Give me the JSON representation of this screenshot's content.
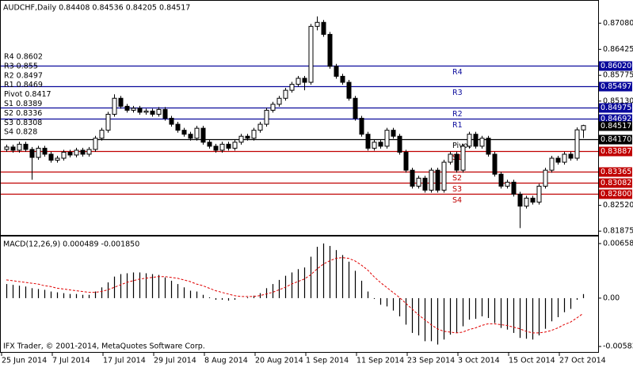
{
  "chart_data": [
    {
      "type": "candlestick",
      "title": "AUDCHF,Daily  0.84408 0.84536 0.84205 0.84517",
      "footer": "IFX Trader, © 2001-2014, MetaQuotes Software Corp.",
      "categories": [
        "25 Jun 2014",
        null,
        null,
        null,
        null,
        null,
        null,
        null,
        "7 Jul 2014",
        null,
        null,
        null,
        null,
        null,
        null,
        null,
        "17 Jul 2014",
        null,
        null,
        null,
        null,
        null,
        null,
        null,
        "29 Jul 2014",
        null,
        null,
        null,
        null,
        null,
        null,
        null,
        "8 Aug 2014",
        null,
        null,
        null,
        null,
        null,
        null,
        null,
        "20 Aug 2014",
        null,
        null,
        null,
        null,
        null,
        null,
        null,
        "1 Sep 2014",
        null,
        null,
        null,
        null,
        null,
        null,
        null,
        "11 Sep 2014",
        null,
        null,
        null,
        null,
        null,
        null,
        null,
        "23 Sep 2014",
        null,
        null,
        null,
        null,
        null,
        null,
        null,
        "3 Oct 2014",
        null,
        null,
        null,
        null,
        null,
        null,
        null,
        "15 Oct 2014",
        null,
        null,
        null,
        null,
        null,
        null,
        null,
        "27 Oct 2014",
        null,
        null,
        null
      ],
      "open": [
        0.8392,
        0.8398,
        0.839,
        0.8405,
        0.8392,
        0.8372,
        0.8395,
        0.838,
        0.8365,
        0.837,
        0.8385,
        0.8378,
        0.839,
        0.838,
        0.8392,
        0.842,
        0.844,
        0.848,
        0.852,
        0.85,
        0.849,
        0.8495,
        0.8485,
        0.8488,
        0.848,
        0.8492,
        0.847,
        0.8455,
        0.844,
        0.843,
        0.842,
        0.8445,
        0.841,
        0.84,
        0.839,
        0.8405,
        0.8395,
        0.841,
        0.8425,
        0.842,
        0.844,
        0.8455,
        0.849,
        0.8505,
        0.852,
        0.854,
        0.8555,
        0.857,
        0.856,
        0.87,
        0.871,
        0.868,
        0.86,
        0.8575,
        0.856,
        0.852,
        0.847,
        0.843,
        0.8395,
        0.841,
        0.84,
        0.844,
        0.8425,
        0.8385,
        0.834,
        0.83,
        0.832,
        0.829,
        0.834,
        0.829,
        0.836,
        0.838,
        0.834,
        0.84,
        0.843,
        0.84,
        0.842,
        0.838,
        0.833,
        0.83,
        0.831,
        0.828,
        0.825,
        0.827,
        0.826,
        0.83,
        0.834,
        0.837,
        0.836,
        0.838,
        0.837,
        0.84408
      ],
      "high": [
        0.8404,
        0.8404,
        0.8411,
        0.8411,
        0.8398,
        0.8401,
        0.8401,
        0.8386,
        0.8376,
        0.8391,
        0.8391,
        0.8396,
        0.8396,
        0.8398,
        0.8426,
        0.8446,
        0.8486,
        0.853,
        0.8526,
        0.8506,
        0.8501,
        0.8501,
        0.8494,
        0.8494,
        0.8498,
        0.8498,
        0.8476,
        0.8461,
        0.8446,
        0.8436,
        0.8451,
        0.8451,
        0.8416,
        0.8406,
        0.8411,
        0.8411,
        0.8416,
        0.8431,
        0.8431,
        0.8446,
        0.8461,
        0.8496,
        0.8511,
        0.8526,
        0.8546,
        0.8561,
        0.8576,
        0.8576,
        0.8706,
        0.8725,
        0.8716,
        0.8686,
        0.8606,
        0.8581,
        0.8566,
        0.8526,
        0.8476,
        0.8436,
        0.8416,
        0.8416,
        0.8446,
        0.8446,
        0.8431,
        0.8391,
        0.8346,
        0.8326,
        0.8326,
        0.8346,
        0.8346,
        0.8366,
        0.8386,
        0.8386,
        0.8406,
        0.8436,
        0.8436,
        0.8426,
        0.8426,
        0.8386,
        0.8336,
        0.8316,
        0.8316,
        0.8286,
        0.8276,
        0.8276,
        0.8306,
        0.8346,
        0.8376,
        0.8376,
        0.8386,
        0.8386,
        0.8447,
        0.84536
      ],
      "low": [
        0.8386,
        0.8384,
        0.8384,
        0.8386,
        0.8316,
        0.8366,
        0.8374,
        0.8359,
        0.8359,
        0.8364,
        0.8372,
        0.8372,
        0.8374,
        0.8374,
        0.8386,
        0.8414,
        0.8434,
        0.8474,
        0.8494,
        0.8484,
        0.8484,
        0.8479,
        0.8479,
        0.8474,
        0.8474,
        0.8464,
        0.8449,
        0.8434,
        0.8424,
        0.8414,
        0.8414,
        0.8404,
        0.8394,
        0.8384,
        0.8384,
        0.8389,
        0.8389,
        0.8404,
        0.8414,
        0.8414,
        0.8434,
        0.8449,
        0.8484,
        0.8499,
        0.8514,
        0.8534,
        0.8549,
        0.854,
        0.8554,
        0.869,
        0.8674,
        0.8594,
        0.8569,
        0.8554,
        0.8514,
        0.8464,
        0.8424,
        0.8389,
        0.8389,
        0.8394,
        0.8394,
        0.8419,
        0.8379,
        0.8334,
        0.8294,
        0.8294,
        0.8284,
        0.8284,
        0.8284,
        0.8284,
        0.8354,
        0.8334,
        0.8334,
        0.8394,
        0.8394,
        0.8394,
        0.8374,
        0.8324,
        0.8294,
        0.8294,
        0.8274,
        0.8195,
        0.8244,
        0.8254,
        0.8254,
        0.8294,
        0.8334,
        0.8354,
        0.8354,
        0.8364,
        0.8364,
        0.84205
      ],
      "close": [
        0.8398,
        0.839,
        0.8405,
        0.8392,
        0.8372,
        0.8395,
        0.838,
        0.8365,
        0.837,
        0.8385,
        0.8378,
        0.839,
        0.838,
        0.8392,
        0.842,
        0.844,
        0.848,
        0.852,
        0.85,
        0.849,
        0.8495,
        0.8485,
        0.8488,
        0.848,
        0.8492,
        0.847,
        0.8455,
        0.844,
        0.843,
        0.842,
        0.8445,
        0.841,
        0.84,
        0.839,
        0.8405,
        0.8395,
        0.841,
        0.8425,
        0.842,
        0.844,
        0.8455,
        0.849,
        0.8505,
        0.852,
        0.854,
        0.8555,
        0.857,
        0.856,
        0.87,
        0.871,
        0.868,
        0.86,
        0.8575,
        0.856,
        0.852,
        0.847,
        0.843,
        0.8395,
        0.841,
        0.84,
        0.844,
        0.8425,
        0.8385,
        0.834,
        0.83,
        0.832,
        0.829,
        0.834,
        0.829,
        0.836,
        0.838,
        0.834,
        0.84,
        0.843,
        0.84,
        0.842,
        0.838,
        0.833,
        0.83,
        0.831,
        0.828,
        0.825,
        0.827,
        0.826,
        0.83,
        0.834,
        0.837,
        0.836,
        0.838,
        0.837,
        0.8441,
        0.84517
      ],
      "ylim": [
        0.8178,
        0.8764
      ],
      "yticks": [
        {
          "value": 0.8708,
          "label": "0.87080"
        },
        0.86425,
        0.85775,
        {
          "value": 0.8513,
          "label": "0.85130"
        },
        {
          "value": 0.8252,
          "label": "0.82520"
        },
        0.81875
      ],
      "levels": [
        {
          "name": "R4",
          "legend": "R4 0.8602",
          "value": 0.8602,
          "price_label": "0.86020",
          "color": "#0a0a9c"
        },
        {
          "name": "R3",
          "legend": "R3 0.855",
          "value": 0.85497,
          "price_label": "0.85497",
          "color": "#0a0a9c"
        },
        {
          "name": "R2",
          "legend": "R2 0.8497",
          "value": 0.84975,
          "price_label": "0.84975",
          "color": "#0a0a9c"
        },
        {
          "name": "R1",
          "legend": "R1 0.8469",
          "value": 0.84692,
          "price_label": "0.84692",
          "color": "#0a0a9c"
        },
        {
          "name": "Pivot",
          "legend": "Pivot 0.8417",
          "value": 0.8417,
          "price_label": "0.84170",
          "color": "#000000"
        },
        {
          "name": "S1",
          "legend": "S1 0.8389",
          "value": 0.83887,
          "price_label": "0.83887",
          "color": "#c00000"
        },
        {
          "name": "S2",
          "legend": "S2 0.8336",
          "value": 0.83365,
          "price_label": "0.83365",
          "color": "#c00000"
        },
        {
          "name": "S3",
          "legend": "S3 0.8308",
          "value": 0.83082,
          "price_label": "0.83082",
          "color": "#c00000"
        },
        {
          "name": "S4",
          "legend": "S4 0.828",
          "value": 0.828,
          "price_label": "0.82800",
          "color": "#c00000"
        }
      ],
      "last_price": {
        "value": 0.84517,
        "label": "0.84517"
      }
    },
    {
      "type": "macd",
      "title": "MACD(12,26,9) 0.000489 -0.001850",
      "series": [
        {
          "name": "MACD",
          "color": "#000000",
          "values": [
            0.0017,
            0.0016,
            0.0015,
            0.0014,
            0.0012,
            0.0011,
            0.001,
            0.0008,
            0.0007,
            0.0006,
            0.0005,
            0.0005,
            0.0004,
            0.0004,
            0.0008,
            0.0013,
            0.0019,
            0.0026,
            0.0029,
            0.003,
            0.0031,
            0.0031,
            0.003,
            0.0029,
            0.0028,
            0.0025,
            0.0021,
            0.0017,
            0.0013,
            0.0009,
            0.0008,
            0.0004,
            0.0001,
            -0.0002,
            -0.0002,
            -0.0003,
            -0.0002,
            0.0,
            0.0001,
            0.0003,
            0.0006,
            0.0012,
            0.0017,
            0.0022,
            0.0027,
            0.0031,
            0.0035,
            0.0037,
            0.005,
            0.0062,
            0.0066,
            0.0063,
            0.0058,
            0.0052,
            0.0044,
            0.0033,
            0.0021,
            0.0008,
            -0.0001,
            -0.0008,
            -0.001,
            -0.0015,
            -0.0022,
            -0.0032,
            -0.0042,
            -0.0045,
            -0.0052,
            -0.0052,
            -0.0056,
            -0.005,
            -0.0044,
            -0.0042,
            -0.0034,
            -0.0026,
            -0.0025,
            -0.0022,
            -0.0024,
            -0.003,
            -0.0036,
            -0.0038,
            -0.0042,
            -0.0048,
            -0.0049,
            -0.005,
            -0.0045,
            -0.0037,
            -0.0028,
            -0.0023,
            -0.0017,
            -0.0013,
            -0.0002,
            0.000489
          ]
        },
        {
          "name": "Signal",
          "color": "#e00000",
          "values": [
            0.0022,
            0.0021,
            0.002,
            0.0019,
            0.0018,
            0.0017,
            0.0015,
            0.0014,
            0.0012,
            0.0011,
            0.001,
            0.0009,
            0.0008,
            0.0007,
            0.0007,
            0.0008,
            0.001,
            0.0013,
            0.0016,
            0.0019,
            0.0021,
            0.0023,
            0.0024,
            0.0025,
            0.0026,
            0.0026,
            0.0025,
            0.0024,
            0.0022,
            0.002,
            0.0017,
            0.0015,
            0.0012,
            0.0009,
            0.0007,
            0.0005,
            0.0003,
            0.0002,
            0.0002,
            0.0002,
            0.0003,
            0.0005,
            0.0007,
            0.001,
            0.0013,
            0.0017,
            0.002,
            0.0023,
            0.0028,
            0.0035,
            0.0041,
            0.0045,
            0.0048,
            0.0049,
            0.0048,
            0.0045,
            0.004,
            0.0034,
            0.0026,
            0.0019,
            0.0013,
            0.0007,
            0.0001,
            -0.0006,
            -0.0013,
            -0.002,
            -0.0026,
            -0.0032,
            -0.0037,
            -0.004,
            -0.0041,
            -0.0042,
            -0.0041,
            -0.0038,
            -0.0036,
            -0.0033,
            -0.0031,
            -0.0031,
            -0.0032,
            -0.0033,
            -0.0035,
            -0.0037,
            -0.004,
            -0.0042,
            -0.0042,
            -0.0041,
            -0.0039,
            -0.0036,
            -0.0032,
            -0.0029,
            -0.0024,
            -0.00185
          ]
        }
      ],
      "ylim": [
        -0.0065,
        0.00744
      ],
      "yticks": [
        0.006588,
        {
          "value": 0,
          "label": "0.00"
        },
        -0.005836
      ]
    }
  ]
}
